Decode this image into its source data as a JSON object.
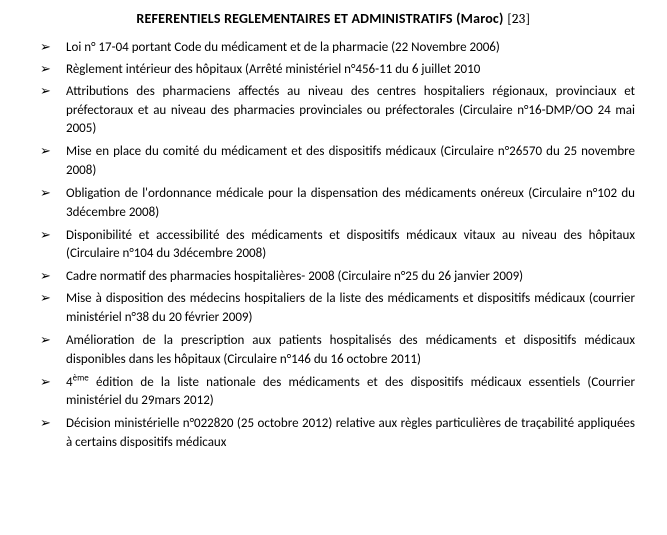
{
  "title_main": "REFERENTIELS REGLEMENTAIRES ET ADMINISTRATIFS (Maroc) ",
  "title_ref": "[23]",
  "items": [
    "Loi n° 17-04 portant Code du médicament et de la pharmacie (22 Novembre 2006)",
    "Règlement intérieur des hôpitaux (Arrêté ministériel n°456-11 du 6 juillet 2010",
    "Attributions des pharmaciens affectés au niveau des centres hospitaliers régionaux, provinciaux et préfectoraux et au niveau des pharmacies provinciales ou préfectorales (Circulaire n°16-DMP/OO 24 mai 2005)",
    "Mise en place du comité du médicament et des dispositifs médicaux (Circulaire n°26570 du 25 novembre 2008)",
    "Obligation de l'ordonnance médicale pour la dispensation des médicaments onéreux (Circulaire n°102 du 3décembre 2008)",
    "Disponibilité et accessibilité des médicaments et dispositifs médicaux vitaux au niveau des hôpitaux (Circulaire n°104 du 3décembre 2008)",
    "Cadre normatif des pharmacies hospitalières- 2008 (Circulaire n°25 du 26 janvier 2009)",
    "Mise à disposition des médecins hospitaliers de la liste des médicaments et dispositifs médicaux (courrier ministériel n°38 du 20 février 2009)",
    "Amélioration de la prescription aux patients hospitalisés des médicaments et dispositifs médicaux disponibles dans les hôpitaux (Circulaire n°146 du 16 octobre 2011)",
    "",
    "Décision ministérielle n°022820 (25 octobre 2012) relative aux règles particulières de traçabilité appliquées à certains dispositifs médicaux"
  ],
  "item9_prefix": "4",
  "item9_sup": "ème",
  "item9_rest": " édition de la liste nationale des médicaments et des dispositifs médicaux essentiels (Courrier ministériel du 29mars 2012)"
}
